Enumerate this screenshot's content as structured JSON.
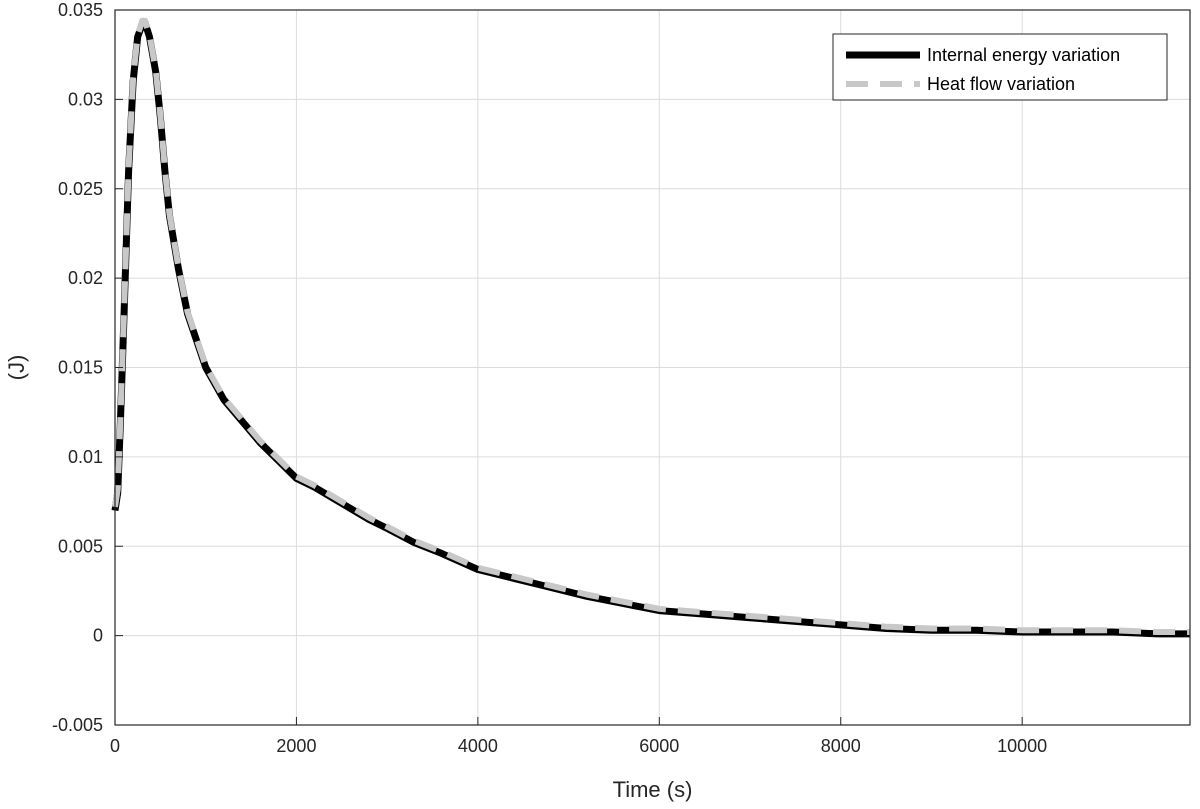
{
  "chart_data": {
    "type": "line",
    "title": "",
    "xlabel": "Time (s)",
    "ylabel": "(J)",
    "xlim": [
      0,
      11850
    ],
    "ylim": [
      -0.005,
      0.035
    ],
    "grid": true,
    "legend_position": "top-right",
    "x_ticks": [
      0,
      2000,
      4000,
      6000,
      8000,
      10000
    ],
    "x_tick_labels": [
      "0",
      "2000",
      "4000",
      "6000",
      "8000",
      "10000"
    ],
    "y_ticks": [
      -0.005,
      0,
      0.005,
      0.01,
      0.015,
      0.02,
      0.025,
      0.03,
      0.035
    ],
    "y_tick_labels": [
      "-0.005",
      "0",
      "0.005",
      "0.01",
      "0.015",
      "0.02",
      "0.025",
      "0.03",
      "0.035"
    ],
    "series": [
      {
        "name": "Internal energy variation",
        "color": "#000000",
        "style": "solid",
        "x": [
          0,
          30,
          60,
          100,
          150,
          200,
          250,
          300,
          330,
          380,
          450,
          500,
          550,
          600,
          700,
          800,
          900,
          1000,
          1100,
          1200,
          1400,
          1600,
          1800,
          2000,
          2200,
          2500,
          2800,
          3000,
          3300,
          3600,
          4000,
          4400,
          4800,
          5200,
          5600,
          6000,
          6500,
          7000,
          7500,
          8000,
          8500,
          9000,
          9500,
          10000,
          10500,
          11000,
          11500,
          11850
        ],
        "y": [
          0.007,
          0.008,
          0.012,
          0.018,
          0.026,
          0.031,
          0.0335,
          0.0342,
          0.0343,
          0.0335,
          0.0315,
          0.029,
          0.026,
          0.0235,
          0.0205,
          0.018,
          0.0165,
          0.015,
          0.0141,
          0.0132,
          0.012,
          0.0108,
          0.0098,
          0.0088,
          0.0083,
          0.0074,
          0.0065,
          0.006,
          0.0052,
          0.0046,
          0.0037,
          0.0032,
          0.0027,
          0.0022,
          0.0018,
          0.0014,
          0.0012,
          0.001,
          0.0008,
          0.0006,
          0.0004,
          0.0003,
          0.0003,
          0.0002,
          0.0002,
          0.0002,
          0.0001,
          0.0001
        ]
      },
      {
        "name": "Heat flow variation",
        "color": "#c8c8c8",
        "style": "dashed",
        "x": [
          0,
          30,
          60,
          100,
          150,
          200,
          250,
          300,
          330,
          380,
          450,
          500,
          550,
          600,
          700,
          800,
          900,
          1000,
          1100,
          1200,
          1400,
          1600,
          1800,
          2000,
          2200,
          2500,
          2800,
          3000,
          3300,
          3600,
          4000,
          4400,
          4800,
          5200,
          5600,
          6000,
          6500,
          7000,
          7500,
          8000,
          8500,
          9000,
          9500,
          10000,
          10500,
          11000,
          11500,
          11850
        ],
        "y": [
          0.0072,
          0.0082,
          0.0122,
          0.0182,
          0.0262,
          0.0312,
          0.0336,
          0.0344,
          0.0344,
          0.0336,
          0.0316,
          0.0291,
          0.0261,
          0.0236,
          0.0206,
          0.0181,
          0.0166,
          0.0151,
          0.0142,
          0.0133,
          0.0121,
          0.0109,
          0.0099,
          0.0089,
          0.0084,
          0.0075,
          0.0066,
          0.0061,
          0.0053,
          0.0047,
          0.0038,
          0.0033,
          0.0028,
          0.0023,
          0.0019,
          0.0015,
          0.0013,
          0.0011,
          0.0009,
          0.0007,
          0.0005,
          0.0004,
          0.0004,
          0.0003,
          0.0003,
          0.0003,
          0.0002,
          0.0002
        ]
      }
    ]
  }
}
